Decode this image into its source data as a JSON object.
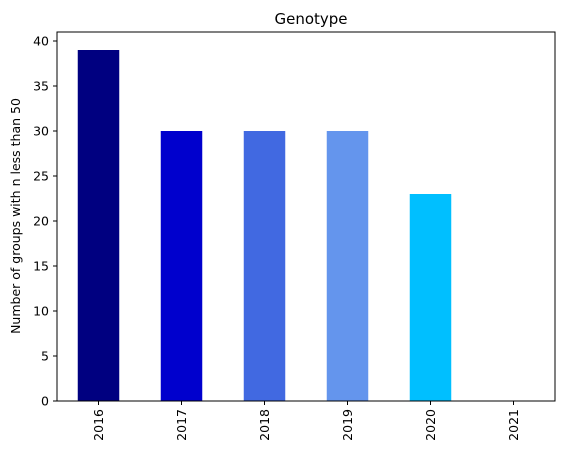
{
  "chart_data": {
    "type": "bar",
    "title": "Genotype",
    "xlabel": "",
    "ylabel": "Number of groups with n less than 50",
    "categories": [
      "2016",
      "2017",
      "2018",
      "2019",
      "2020",
      "2021"
    ],
    "values": [
      39,
      30,
      30,
      30,
      23,
      0
    ],
    "colors": [
      "#000080",
      "#0000CD",
      "#4169E1",
      "#6495ED",
      "#00BFFF",
      "#87CEFA"
    ],
    "ylim": [
      0,
      41
    ],
    "yticks": [
      0,
      5,
      10,
      15,
      20,
      25,
      30,
      35,
      40
    ],
    "grid": false,
    "legend": "none"
  }
}
